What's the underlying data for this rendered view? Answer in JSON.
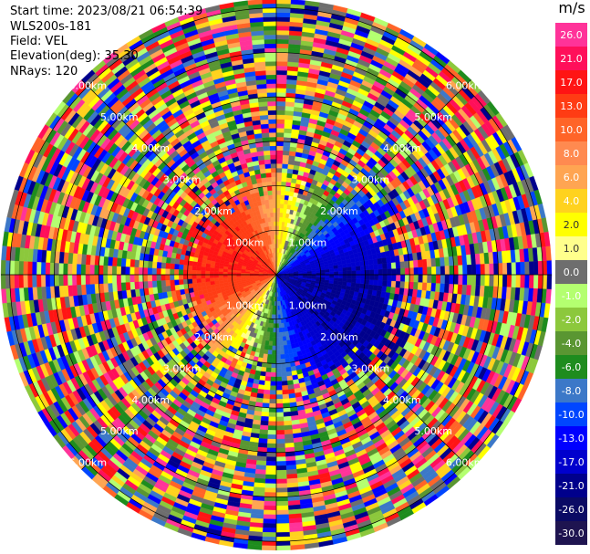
{
  "info": {
    "start_time": "Start time: 2023/08/21 06:54:39",
    "site": "WLS200s-181",
    "field": "Field: VEL",
    "elevation": "Elevation(deg): 35.30",
    "nrays": "NRays: 120"
  },
  "chart_data": {
    "type": "heatmap",
    "projection": "polar-ppi",
    "field": "VEL",
    "units": "m/s",
    "start_time": "2023/08/21 06:54:39",
    "instrument": "WLS200s-181",
    "elevation_deg": 35.3,
    "n_rays": 120,
    "range_rings_km": [
      1.0,
      2.0,
      3.0,
      4.0,
      5.0,
      6.0
    ],
    "range_ring_labels": [
      "1.00km",
      "2.00km",
      "3.00km",
      "4.00km",
      "5.00km",
      "6.00km"
    ],
    "max_range_km": 6.2,
    "colorbar": {
      "label": "m/s",
      "tick_labels": [
        "26.0",
        "21.0",
        "17.0",
        "13.0",
        "10.0",
        "8.0",
        "6.0",
        "4.0",
        "2.0",
        "1.0",
        "0.0",
        "-1.0",
        "-2.0",
        "-4.0",
        "-6.0",
        "-8.0",
        "-10.0",
        "-13.0",
        "-17.0",
        "-21.0",
        "-26.0",
        "-30.0"
      ],
      "colors": [
        "#ff3399",
        "#ff0f5a",
        "#ff1414",
        "#ff3c14",
        "#ff6428",
        "#ff8a50",
        "#ffa552",
        "#ffd21e",
        "#ffff00",
        "#ffff8c",
        "#6e6e6e",
        "#b4ff70",
        "#8cc83c",
        "#5a9632",
        "#1e8c1e",
        "#3c78c8",
        "#0046ff",
        "#0000ff",
        "#0000cd",
        "#00008c",
        "#0a0a64",
        "#1e1450"
      ]
    },
    "gate_length_km": 0.1,
    "noise_colors": [
      "#ff3399",
      "#ff1414",
      "#ffff00",
      "#0000ff",
      "#1e8c1e",
      "#ffa552",
      "#8cc83c",
      "#3c78c8",
      "#ff0f5a",
      "#0046ff",
      "#00008c",
      "#6e6e6e",
      "#ffd21e",
      "#ff6428",
      "#5a9632",
      "#b4ff70"
    ],
    "valid_range_km": [
      0.0,
      2.5
    ],
    "velocity_pattern": "approx. -13 m/s toward east-southeast, +13 to +26 m/s toward west-northwest"
  }
}
